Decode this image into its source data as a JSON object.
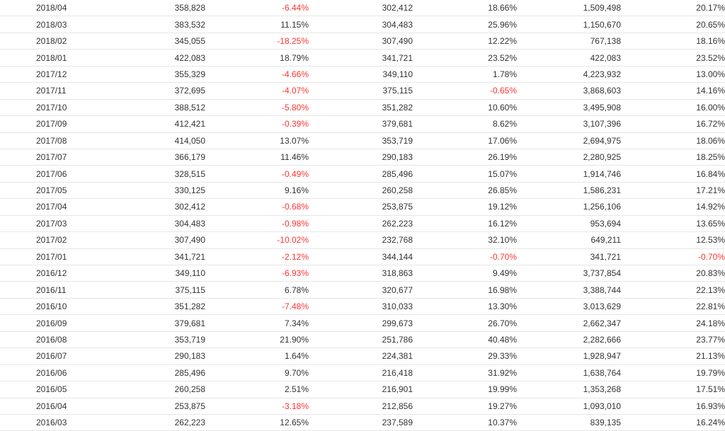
{
  "table": {
    "rows": [
      {
        "month": "2018/04",
        "value": "358,828",
        "mom": "-6.44%",
        "prev_year": "302,412",
        "yoy": "18.66%",
        "cumulative": "1,509,498",
        "cum_yoy": "20.17%"
      },
      {
        "month": "2018/03",
        "value": "383,532",
        "mom": "11.15%",
        "prev_year": "304,483",
        "yoy": "25.96%",
        "cumulative": "1,150,670",
        "cum_yoy": "20.65%"
      },
      {
        "month": "2018/02",
        "value": "345,055",
        "mom": "-18.25%",
        "prev_year": "307,490",
        "yoy": "12.22%",
        "cumulative": "767,138",
        "cum_yoy": "18.16%"
      },
      {
        "month": "2018/01",
        "value": "422,083",
        "mom": "18.79%",
        "prev_year": "341,721",
        "yoy": "23.52%",
        "cumulative": "422,083",
        "cum_yoy": "23.52%"
      },
      {
        "month": "2017/12",
        "value": "355,329",
        "mom": "-4.66%",
        "prev_year": "349,110",
        "yoy": "1.78%",
        "cumulative": "4,223,932",
        "cum_yoy": "13.00%"
      },
      {
        "month": "2017/11",
        "value": "372,695",
        "mom": "-4.07%",
        "prev_year": "375,115",
        "yoy": "-0.65%",
        "cumulative": "3,868,603",
        "cum_yoy": "14.16%"
      },
      {
        "month": "2017/10",
        "value": "388,512",
        "mom": "-5.80%",
        "prev_year": "351,282",
        "yoy": "10.60%",
        "cumulative": "3,495,908",
        "cum_yoy": "16.00%"
      },
      {
        "month": "2017/09",
        "value": "412,421",
        "mom": "-0.39%",
        "prev_year": "379,681",
        "yoy": "8.62%",
        "cumulative": "3,107,396",
        "cum_yoy": "16.72%"
      },
      {
        "month": "2017/08",
        "value": "414,050",
        "mom": "13.07%",
        "prev_year": "353,719",
        "yoy": "17.06%",
        "cumulative": "2,694,975",
        "cum_yoy": "18.06%"
      },
      {
        "month": "2017/07",
        "value": "366,179",
        "mom": "11.46%",
        "prev_year": "290,183",
        "yoy": "26.19%",
        "cumulative": "2,280,925",
        "cum_yoy": "18.25%"
      },
      {
        "month": "2017/06",
        "value": "328,515",
        "mom": "-0.49%",
        "prev_year": "285,496",
        "yoy": "15.07%",
        "cumulative": "1,914,746",
        "cum_yoy": "16.84%"
      },
      {
        "month": "2017/05",
        "value": "330,125",
        "mom": "9.16%",
        "prev_year": "260,258",
        "yoy": "26.85%",
        "cumulative": "1,586,231",
        "cum_yoy": "17.21%"
      },
      {
        "month": "2017/04",
        "value": "302,412",
        "mom": "-0.68%",
        "prev_year": "253,875",
        "yoy": "19.12%",
        "cumulative": "1,256,106",
        "cum_yoy": "14.92%"
      },
      {
        "month": "2017/03",
        "value": "304,483",
        "mom": "-0.98%",
        "prev_year": "262,223",
        "yoy": "16.12%",
        "cumulative": "953,694",
        "cum_yoy": "13.65%"
      },
      {
        "month": "2017/02",
        "value": "307,490",
        "mom": "-10.02%",
        "prev_year": "232,768",
        "yoy": "32.10%",
        "cumulative": "649,211",
        "cum_yoy": "12.53%"
      },
      {
        "month": "2017/01",
        "value": "341,721",
        "mom": "-2.12%",
        "prev_year": "344,144",
        "yoy": "-0.70%",
        "cumulative": "341,721",
        "cum_yoy": "-0.70%"
      },
      {
        "month": "2016/12",
        "value": "349,110",
        "mom": "-6.93%",
        "prev_year": "318,863",
        "yoy": "9.49%",
        "cumulative": "3,737,854",
        "cum_yoy": "20.83%"
      },
      {
        "month": "2016/11",
        "value": "375,115",
        "mom": "6.78%",
        "prev_year": "320,677",
        "yoy": "16.98%",
        "cumulative": "3,388,744",
        "cum_yoy": "22.13%"
      },
      {
        "month": "2016/10",
        "value": "351,282",
        "mom": "-7.48%",
        "prev_year": "310,033",
        "yoy": "13.30%",
        "cumulative": "3,013,629",
        "cum_yoy": "22.81%"
      },
      {
        "month": "2016/09",
        "value": "379,681",
        "mom": "7.34%",
        "prev_year": "299,673",
        "yoy": "26.70%",
        "cumulative": "2,662,347",
        "cum_yoy": "24.18%"
      },
      {
        "month": "2016/08",
        "value": "353,719",
        "mom": "21.90%",
        "prev_year": "251,786",
        "yoy": "40.48%",
        "cumulative": "2,282,666",
        "cum_yoy": "23.77%"
      },
      {
        "month": "2016/07",
        "value": "290,183",
        "mom": "1.64%",
        "prev_year": "224,381",
        "yoy": "29.33%",
        "cumulative": "1,928,947",
        "cum_yoy": "21.13%"
      },
      {
        "month": "2016/06",
        "value": "285,496",
        "mom": "9.70%",
        "prev_year": "216,418",
        "yoy": "31.92%",
        "cumulative": "1,638,764",
        "cum_yoy": "19.79%"
      },
      {
        "month": "2016/05",
        "value": "260,258",
        "mom": "2.51%",
        "prev_year": "216,901",
        "yoy": "19.99%",
        "cumulative": "1,353,268",
        "cum_yoy": "17.51%"
      },
      {
        "month": "2016/04",
        "value": "253,875",
        "mom": "-3.18%",
        "prev_year": "212,856",
        "yoy": "19.27%",
        "cumulative": "1,093,010",
        "cum_yoy": "16.93%"
      },
      {
        "month": "2016/03",
        "value": "262,223",
        "mom": "12.65%",
        "prev_year": "237,589",
        "yoy": "10.37%",
        "cumulative": "839,135",
        "cum_yoy": "16.24%"
      }
    ]
  },
  "colors": {
    "negative": "#ff3333",
    "text": "#333333",
    "row_border": "#e6e6e6"
  }
}
